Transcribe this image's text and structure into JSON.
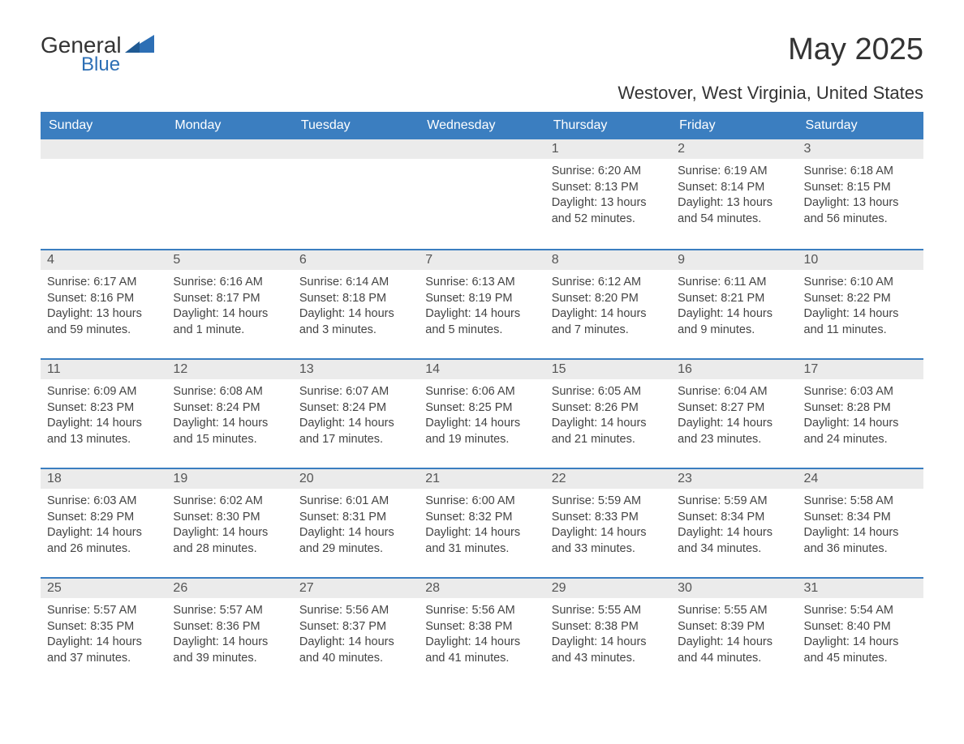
{
  "logo": {
    "line1": "General",
    "line2": "Blue",
    "accent_color": "#2d6fb5"
  },
  "title": "May 2025",
  "subtitle": "Westover, West Virginia, United States",
  "colors": {
    "header_bg": "#3b7ec0",
    "header_text": "#ffffff",
    "daynum_bg": "#ebebeb",
    "daynum_text": "#555555",
    "border": "#3b7ec0",
    "body_text": "#444444",
    "background": "#ffffff"
  },
  "columns": [
    "Sunday",
    "Monday",
    "Tuesday",
    "Wednesday",
    "Thursday",
    "Friday",
    "Saturday"
  ],
  "weeks": [
    [
      null,
      null,
      null,
      null,
      {
        "n": "1",
        "sunrise": "6:20 AM",
        "sunset": "8:13 PM",
        "daylight": "13 hours and 52 minutes."
      },
      {
        "n": "2",
        "sunrise": "6:19 AM",
        "sunset": "8:14 PM",
        "daylight": "13 hours and 54 minutes."
      },
      {
        "n": "3",
        "sunrise": "6:18 AM",
        "sunset": "8:15 PM",
        "daylight": "13 hours and 56 minutes."
      }
    ],
    [
      {
        "n": "4",
        "sunrise": "6:17 AM",
        "sunset": "8:16 PM",
        "daylight": "13 hours and 59 minutes."
      },
      {
        "n": "5",
        "sunrise": "6:16 AM",
        "sunset": "8:17 PM",
        "daylight": "14 hours and 1 minute."
      },
      {
        "n": "6",
        "sunrise": "6:14 AM",
        "sunset": "8:18 PM",
        "daylight": "14 hours and 3 minutes."
      },
      {
        "n": "7",
        "sunrise": "6:13 AM",
        "sunset": "8:19 PM",
        "daylight": "14 hours and 5 minutes."
      },
      {
        "n": "8",
        "sunrise": "6:12 AM",
        "sunset": "8:20 PM",
        "daylight": "14 hours and 7 minutes."
      },
      {
        "n": "9",
        "sunrise": "6:11 AM",
        "sunset": "8:21 PM",
        "daylight": "14 hours and 9 minutes."
      },
      {
        "n": "10",
        "sunrise": "6:10 AM",
        "sunset": "8:22 PM",
        "daylight": "14 hours and 11 minutes."
      }
    ],
    [
      {
        "n": "11",
        "sunrise": "6:09 AM",
        "sunset": "8:23 PM",
        "daylight": "14 hours and 13 minutes."
      },
      {
        "n": "12",
        "sunrise": "6:08 AM",
        "sunset": "8:24 PM",
        "daylight": "14 hours and 15 minutes."
      },
      {
        "n": "13",
        "sunrise": "6:07 AM",
        "sunset": "8:24 PM",
        "daylight": "14 hours and 17 minutes."
      },
      {
        "n": "14",
        "sunrise": "6:06 AM",
        "sunset": "8:25 PM",
        "daylight": "14 hours and 19 minutes."
      },
      {
        "n": "15",
        "sunrise": "6:05 AM",
        "sunset": "8:26 PM",
        "daylight": "14 hours and 21 minutes."
      },
      {
        "n": "16",
        "sunrise": "6:04 AM",
        "sunset": "8:27 PM",
        "daylight": "14 hours and 23 minutes."
      },
      {
        "n": "17",
        "sunrise": "6:03 AM",
        "sunset": "8:28 PM",
        "daylight": "14 hours and 24 minutes."
      }
    ],
    [
      {
        "n": "18",
        "sunrise": "6:03 AM",
        "sunset": "8:29 PM",
        "daylight": "14 hours and 26 minutes."
      },
      {
        "n": "19",
        "sunrise": "6:02 AM",
        "sunset": "8:30 PM",
        "daylight": "14 hours and 28 minutes."
      },
      {
        "n": "20",
        "sunrise": "6:01 AM",
        "sunset": "8:31 PM",
        "daylight": "14 hours and 29 minutes."
      },
      {
        "n": "21",
        "sunrise": "6:00 AM",
        "sunset": "8:32 PM",
        "daylight": "14 hours and 31 minutes."
      },
      {
        "n": "22",
        "sunrise": "5:59 AM",
        "sunset": "8:33 PM",
        "daylight": "14 hours and 33 minutes."
      },
      {
        "n": "23",
        "sunrise": "5:59 AM",
        "sunset": "8:34 PM",
        "daylight": "14 hours and 34 minutes."
      },
      {
        "n": "24",
        "sunrise": "5:58 AM",
        "sunset": "8:34 PM",
        "daylight": "14 hours and 36 minutes."
      }
    ],
    [
      {
        "n": "25",
        "sunrise": "5:57 AM",
        "sunset": "8:35 PM",
        "daylight": "14 hours and 37 minutes."
      },
      {
        "n": "26",
        "sunrise": "5:57 AM",
        "sunset": "8:36 PM",
        "daylight": "14 hours and 39 minutes."
      },
      {
        "n": "27",
        "sunrise": "5:56 AM",
        "sunset": "8:37 PM",
        "daylight": "14 hours and 40 minutes."
      },
      {
        "n": "28",
        "sunrise": "5:56 AM",
        "sunset": "8:38 PM",
        "daylight": "14 hours and 41 minutes."
      },
      {
        "n": "29",
        "sunrise": "5:55 AM",
        "sunset": "8:38 PM",
        "daylight": "14 hours and 43 minutes."
      },
      {
        "n": "30",
        "sunrise": "5:55 AM",
        "sunset": "8:39 PM",
        "daylight": "14 hours and 44 minutes."
      },
      {
        "n": "31",
        "sunrise": "5:54 AM",
        "sunset": "8:40 PM",
        "daylight": "14 hours and 45 minutes."
      }
    ]
  ],
  "labels": {
    "sunrise": "Sunrise:",
    "sunset": "Sunset:",
    "daylight": "Daylight:"
  }
}
